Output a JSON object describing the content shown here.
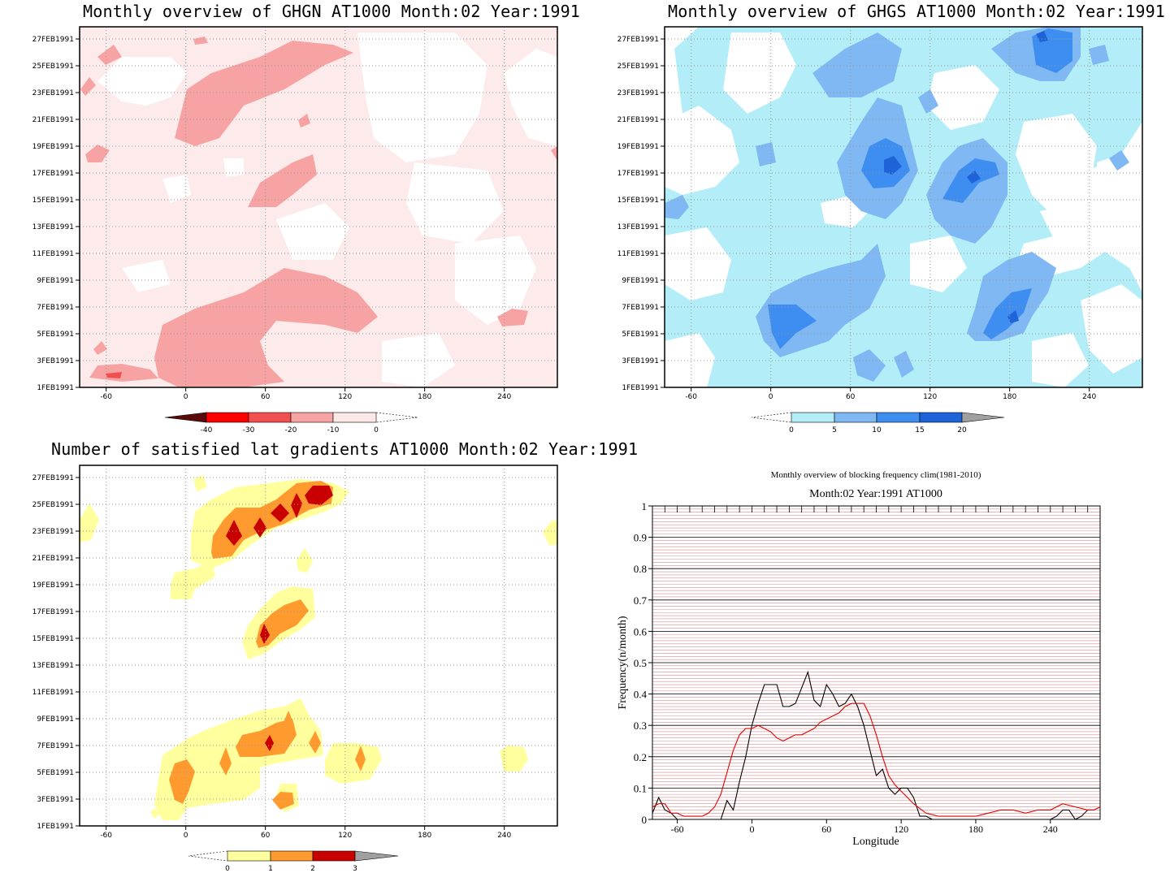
{
  "panels": {
    "ghgn": {
      "title": "Monthly overview of GHGN AT1000 Month:02 Year:1991",
      "colorbar": {
        "labels": [
          "-40",
          "-30",
          "-20",
          "-10",
          "0"
        ],
        "colors": [
          "#5a0a0a",
          "#ff0000",
          "#f25050",
          "#f7a3a3",
          "#fde8e8"
        ]
      }
    },
    "ghgs": {
      "title": "Monthly overview of GHGS AT1000 Month:02 Year:1991",
      "colorbar": {
        "labels": [
          "0",
          "5",
          "10",
          "15",
          "20"
        ],
        "colors": [
          "#b3eef8",
          "#7fb8f2",
          "#3d8ef0",
          "#1e63d8",
          "#a0a0a0"
        ]
      }
    },
    "gradients": {
      "title": "Number of satisfied lat gradients AT1000 Month:02 Year:1991",
      "colorbar": {
        "labels": [
          "0",
          "1",
          "2",
          "3"
        ],
        "colors": [
          "#ffff9e",
          "#ff9b2e",
          "#c80000",
          "#a0a0a0"
        ]
      }
    },
    "blocking": {
      "title": "Monthly overview of blocking frequency clim(1981-2010)",
      "subtitle": "Month:02 Year:1991  AT1000"
    }
  },
  "axes": {
    "date_ticks": [
      "1FEB1991",
      "3FEB1991",
      "5FEB1991",
      "7FEB1991",
      "9FEB1991",
      "11FEB1991",
      "13FEB1991",
      "15FEB1991",
      "17FEB1991",
      "19FEB1991",
      "21FEB1991",
      "23FEB1991",
      "25FEB1991",
      "27FEB1991"
    ],
    "lon_ticks": [
      "-60",
      "0",
      "60",
      "120",
      "180",
      "240"
    ]
  },
  "chart_data": [
    {
      "type": "heatmap",
      "title": "Monthly overview of GHGN AT1000 Month:02 Year:1991",
      "x_range": [
        -80,
        280
      ],
      "y_range": [
        "1FEB1991",
        "28FEB1991"
      ],
      "levels": [
        -40,
        -30,
        -20,
        -10,
        0
      ],
      "regions": [
        {
          "level": "-20 to -10",
          "lon": [
            0,
            130
          ],
          "dates": [
            "20FEB1991",
            "26FEB1991"
          ]
        },
        {
          "level": "-20 to -10",
          "lon": [
            -20,
            150
          ],
          "dates": [
            "3FEB1991",
            "9FEB1991"
          ]
        },
        {
          "level": "-20 to -10",
          "lon": [
            50,
            100
          ],
          "dates": [
            "14FEB1991",
            "18FEB1991"
          ]
        }
      ]
    },
    {
      "type": "heatmap",
      "title": "Monthly overview of GHGS AT1000 Month:02 Year:1991",
      "x_range": [
        -80,
        280
      ],
      "y_range": [
        "1FEB1991",
        "28FEB1991"
      ],
      "levels": [
        0,
        5,
        10,
        15,
        20
      ],
      "regions": [
        {
          "level": "15 to 20",
          "lon": [
            80,
            100
          ],
          "dates": [
            "16FEB1991",
            "18FEB1991"
          ]
        },
        {
          "level": "15 to 20",
          "lon": [
            140,
            170
          ],
          "dates": [
            "16FEB1991",
            "18FEB1991"
          ]
        },
        {
          "level": "15 to 20",
          "lon": [
            160,
            195
          ],
          "dates": [
            "5FEB1991",
            "7FEB1991"
          ]
        },
        {
          "level": "15 to 20",
          "lon": [
            195,
            230
          ],
          "dates": [
            "25FEB1991",
            "28FEB1991"
          ]
        }
      ]
    },
    {
      "type": "heatmap",
      "title": "Number of satisfied lat gradients AT1000 Month:02 Year:1991",
      "x_range": [
        -80,
        280
      ],
      "y_range": [
        "1FEB1991",
        "28FEB1991"
      ],
      "levels": [
        0,
        1,
        2,
        3
      ],
      "regions": [
        {
          "level": "2 to 3",
          "lon": [
            30,
            110
          ],
          "dates": [
            "22FEB1991",
            "26FEB1991"
          ]
        },
        {
          "level": "1 to 2",
          "lon": [
            50,
            90
          ],
          "dates": [
            "14FEB1991",
            "17FEB1991"
          ]
        },
        {
          "level": "1 to 2",
          "lon": [
            -10,
            90
          ],
          "dates": [
            "2FEB1991",
            "8FEB1991"
          ]
        }
      ]
    },
    {
      "type": "line",
      "title": "Monthly overview of blocking frequency clim(1981-2010)",
      "subtitle": "Month:02 Year:1991  AT1000",
      "xlabel": "Longitude",
      "ylabel": "Frequency(n/month)",
      "xlim": [
        -80,
        280
      ],
      "ylim": [
        0,
        1
      ],
      "x_ticks": [
        -60,
        0,
        60,
        120,
        180,
        240
      ],
      "y_ticks": [
        0,
        0.1,
        0.2,
        0.3,
        0.4,
        0.5,
        0.6,
        0.7,
        0.8,
        0.9,
        1
      ],
      "grid": true,
      "series": [
        {
          "color": "#000000",
          "x": [
            -80,
            -75,
            -70,
            -65,
            -60,
            -55,
            -50,
            -40,
            -30,
            -25,
            -20,
            -15,
            -10,
            -5,
            0,
            5,
            10,
            15,
            20,
            25,
            30,
            35,
            40,
            45,
            50,
            55,
            60,
            65,
            70,
            75,
            80,
            85,
            90,
            95,
            100,
            105,
            110,
            115,
            120,
            125,
            130,
            135,
            140,
            145,
            150,
            160,
            180,
            200,
            220,
            240,
            245,
            250,
            255,
            260,
            265,
            270,
            275
          ],
          "values": [
            0.02,
            0.07,
            0.03,
            0.02,
            0,
            0,
            0,
            0,
            0,
            0,
            0.06,
            0.03,
            0.12,
            0.2,
            0.3,
            0.37,
            0.43,
            0.43,
            0.43,
            0.36,
            0.36,
            0.37,
            0.42,
            0.47,
            0.38,
            0.36,
            0.43,
            0.4,
            0.36,
            0.37,
            0.4,
            0.36,
            0.3,
            0.22,
            0.14,
            0.16,
            0.1,
            0.08,
            0.1,
            0.1,
            0.07,
            0.01,
            0.01,
            0,
            0,
            0,
            0,
            0,
            0,
            0,
            0.01,
            0.03,
            0.03,
            0,
            0.01,
            0.03,
            0.03
          ]
        },
        {
          "color": "#e00000",
          "x": [
            -80,
            -75,
            -70,
            -65,
            -60,
            -55,
            -50,
            -45,
            -40,
            -35,
            -30,
            -25,
            -20,
            -15,
            -10,
            -5,
            0,
            5,
            10,
            15,
            20,
            25,
            30,
            35,
            40,
            45,
            50,
            55,
            60,
            65,
            70,
            75,
            80,
            85,
            90,
            95,
            100,
            105,
            110,
            115,
            120,
            125,
            130,
            140,
            150,
            160,
            170,
            180,
            190,
            200,
            210,
            220,
            230,
            240,
            250,
            260,
            270,
            275,
            280
          ],
          "values": [
            0.04,
            0.05,
            0.05,
            0.02,
            0.02,
            0.01,
            0.01,
            0.01,
            0.01,
            0.02,
            0.04,
            0.08,
            0.15,
            0.22,
            0.27,
            0.29,
            0.29,
            0.3,
            0.29,
            0.28,
            0.26,
            0.25,
            0.26,
            0.27,
            0.27,
            0.28,
            0.29,
            0.31,
            0.32,
            0.33,
            0.34,
            0.36,
            0.37,
            0.37,
            0.37,
            0.33,
            0.27,
            0.2,
            0.14,
            0.11,
            0.09,
            0.07,
            0.05,
            0.02,
            0.01,
            0.01,
            0.01,
            0.01,
            0.02,
            0.03,
            0.03,
            0.02,
            0.03,
            0.03,
            0.05,
            0.04,
            0.03,
            0.03,
            0.04
          ]
        }
      ]
    }
  ]
}
